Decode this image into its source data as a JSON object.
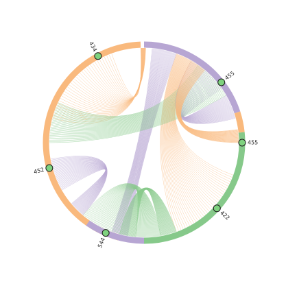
{
  "colors": {
    "orange": "#f9b97d",
    "purple": "#b7a6d3",
    "green": "#86c98a",
    "marker": "#7fd27f"
  },
  "arcs": [
    {
      "name": "orange-top",
      "color": "orange",
      "start": 105,
      "end": 268
    },
    {
      "name": "purple-right",
      "color": "purple",
      "start": 270,
      "end": 342
    },
    {
      "name": "orange-right-thin",
      "color": "orange",
      "start": 342,
      "end": 354
    },
    {
      "name": "green-bottom-right",
      "color": "green",
      "start": 354,
      "end": 450
    },
    {
      "name": "purple-bottom-left",
      "color": "purple",
      "start": 450,
      "end": 485
    }
  ],
  "ribbons": [
    {
      "name": "orange-to-center-top",
      "color": "orange",
      "a": [
        195,
        250
      ],
      "b": [
        268,
        271
      ]
    },
    {
      "name": "orange-to-bottom",
      "color": "orange",
      "a": [
        380,
        430
      ],
      "b": [
        290,
        300
      ]
    },
    {
      "name": "purple-cross",
      "color": "purple",
      "a": [
        275,
        290
      ],
      "b": [
        100,
        110
      ]
    },
    {
      "name": "purple-right-loop",
      "color": "purple",
      "a": [
        300,
        325
      ],
      "b": [
        330,
        345
      ]
    },
    {
      "name": "purple-left",
      "color": "purple",
      "a": [
        150,
        170
      ],
      "b": [
        130,
        140
      ]
    },
    {
      "name": "green-left",
      "color": "green",
      "a": [
        180,
        205
      ],
      "b": [
        305,
        330
      ]
    },
    {
      "name": "green-bottom",
      "color": "green",
      "a": [
        105,
        130
      ],
      "b": [
        80,
        95
      ]
    },
    {
      "name": "green-bottom-center",
      "color": "green",
      "a": [
        95,
        105
      ],
      "b": [
        70,
        80
      ]
    },
    {
      "name": "orange-right-band",
      "color": "orange",
      "a": [
        352,
        360
      ],
      "b": [
        300,
        310
      ]
    }
  ],
  "nodes": [
    {
      "label": "434",
      "angle": 242
    },
    {
      "label": "455",
      "angle": 322
    },
    {
      "label": "455",
      "angle": 0
    },
    {
      "label": "422",
      "angle": 42
    },
    {
      "label": "544",
      "angle": 113
    },
    {
      "label": "452",
      "angle": 165
    }
  ]
}
